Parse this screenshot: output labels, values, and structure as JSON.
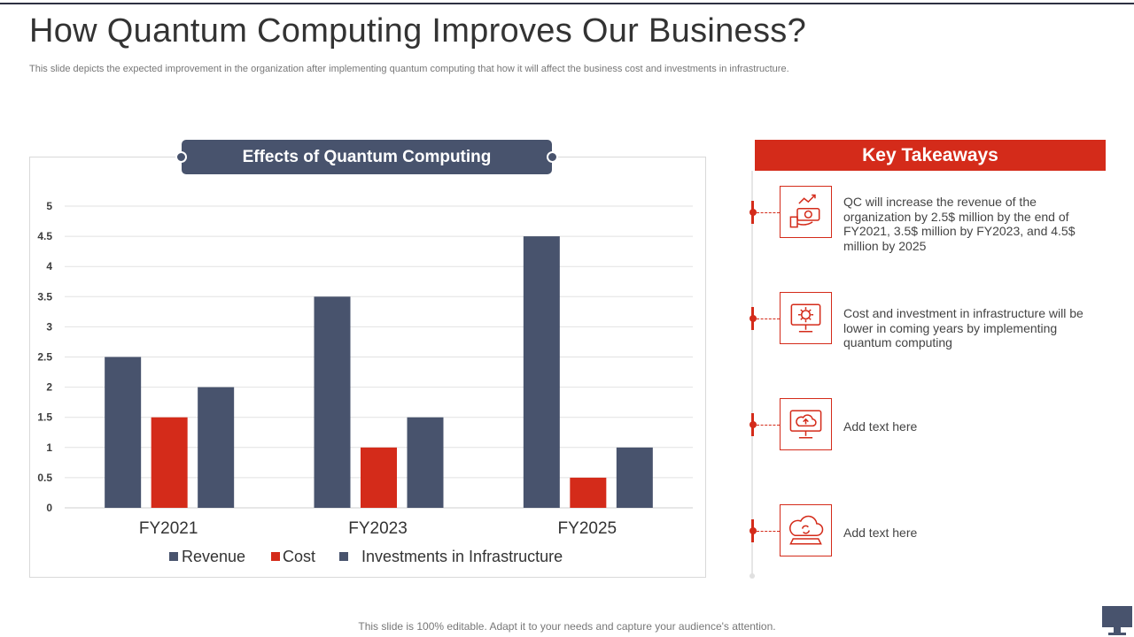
{
  "slide": {
    "title": "How Quantum Computing Improves Our Business?",
    "subtitle": "This slide depicts the expected improvement in the organization after implementing quantum computing that how it will affect the business cost and investments in infrastructure.",
    "footer": "This slide is 100% editable. Adapt it to your needs and capture your audience's attention."
  },
  "colors": {
    "navy": "#48536d",
    "red": "#d42b1a"
  },
  "chart_data": {
    "type": "bar",
    "title": "Effects of Quantum Computing",
    "categories": [
      "FY2021",
      "FY2023",
      "FY2025"
    ],
    "series": [
      {
        "name": "Revenue",
        "color": "#48536d",
        "values": [
          2.5,
          3.5,
          4.5
        ]
      },
      {
        "name": "Cost",
        "color": "#d42b1a",
        "values": [
          1.5,
          1,
          0.5
        ]
      },
      {
        "name": "Investments in Infrastructure",
        "color": "#48536d",
        "values": [
          2,
          1.5,
          1
        ]
      }
    ],
    "ylim": [
      0,
      5
    ],
    "yticks": [
      "0",
      "0.5",
      "1",
      "1.5",
      "2",
      "2.5",
      "3",
      "3.5",
      "4",
      "4.5",
      "5"
    ],
    "xlabel": "",
    "ylabel": "",
    "grid": true,
    "legend": "bottom"
  },
  "takeaways": {
    "heading": "Key Takeaways",
    "items": [
      {
        "icon": "money-growth-icon",
        "text": "QC will increase the revenue of the organization by 2.5$ million by the end of FY2021, 3.5$ million by FY2023, and 4.5$ million by 2025"
      },
      {
        "icon": "monitor-gear-icon",
        "text": "Cost and investment in infrastructure will be lower in coming years by implementing quantum computing"
      },
      {
        "icon": "cloud-monitor-icon",
        "text": "Add text here"
      },
      {
        "icon": "cloud-laptop-icon",
        "text": "Add text here"
      }
    ]
  }
}
